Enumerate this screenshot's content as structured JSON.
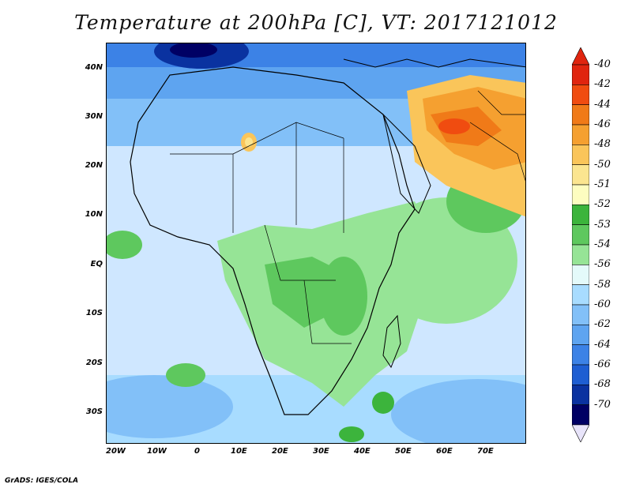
{
  "title": "Temperature at 200hPa [C], VT: 2017121012",
  "footer": "GrADS: IGES/COLA",
  "lat_labels": [
    "40N",
    "30N",
    "20N",
    "10N",
    "EQ",
    "10S",
    "20S",
    "30S"
  ],
  "lon_labels": [
    "20W",
    "10W",
    "0",
    "10E",
    "20E",
    "30E",
    "40E",
    "50E",
    "60E",
    "70E"
  ],
  "colorbar": {
    "labels": [
      "-40",
      "-42",
      "-44",
      "-46",
      "-48",
      "-50",
      "-51",
      "-52",
      "-53",
      "-54",
      "-56",
      "-58",
      "-60",
      "-62",
      "-64",
      "-66",
      "-68",
      "-70"
    ],
    "colors": [
      "#e0250f",
      "#f04c10",
      "#f07a18",
      "#f5a030",
      "#fac55a",
      "#fbe590",
      "#fdfdc0",
      "#3cb43c",
      "#5ec85e",
      "#96e496",
      "#e4fafa",
      "#a8dcff",
      "#82c0f8",
      "#5ea4f0",
      "#3c82e6",
      "#1e5ed2",
      "#0a32a0",
      "#000064"
    ],
    "end_colors": {
      "top": "#e0250f",
      "bottom": "#e8e4fa"
    }
  },
  "map_colors": {
    "ocean_north": "#4a90e8",
    "ocean_mid": "#cfe7ff",
    "land_green": "#96e496",
    "land_dark_green": "#5ec85e",
    "hot_core": "#f07a18",
    "hot_outer": "#fac55a",
    "cold_core": "#0a32a0",
    "border_line": "#000000"
  }
}
